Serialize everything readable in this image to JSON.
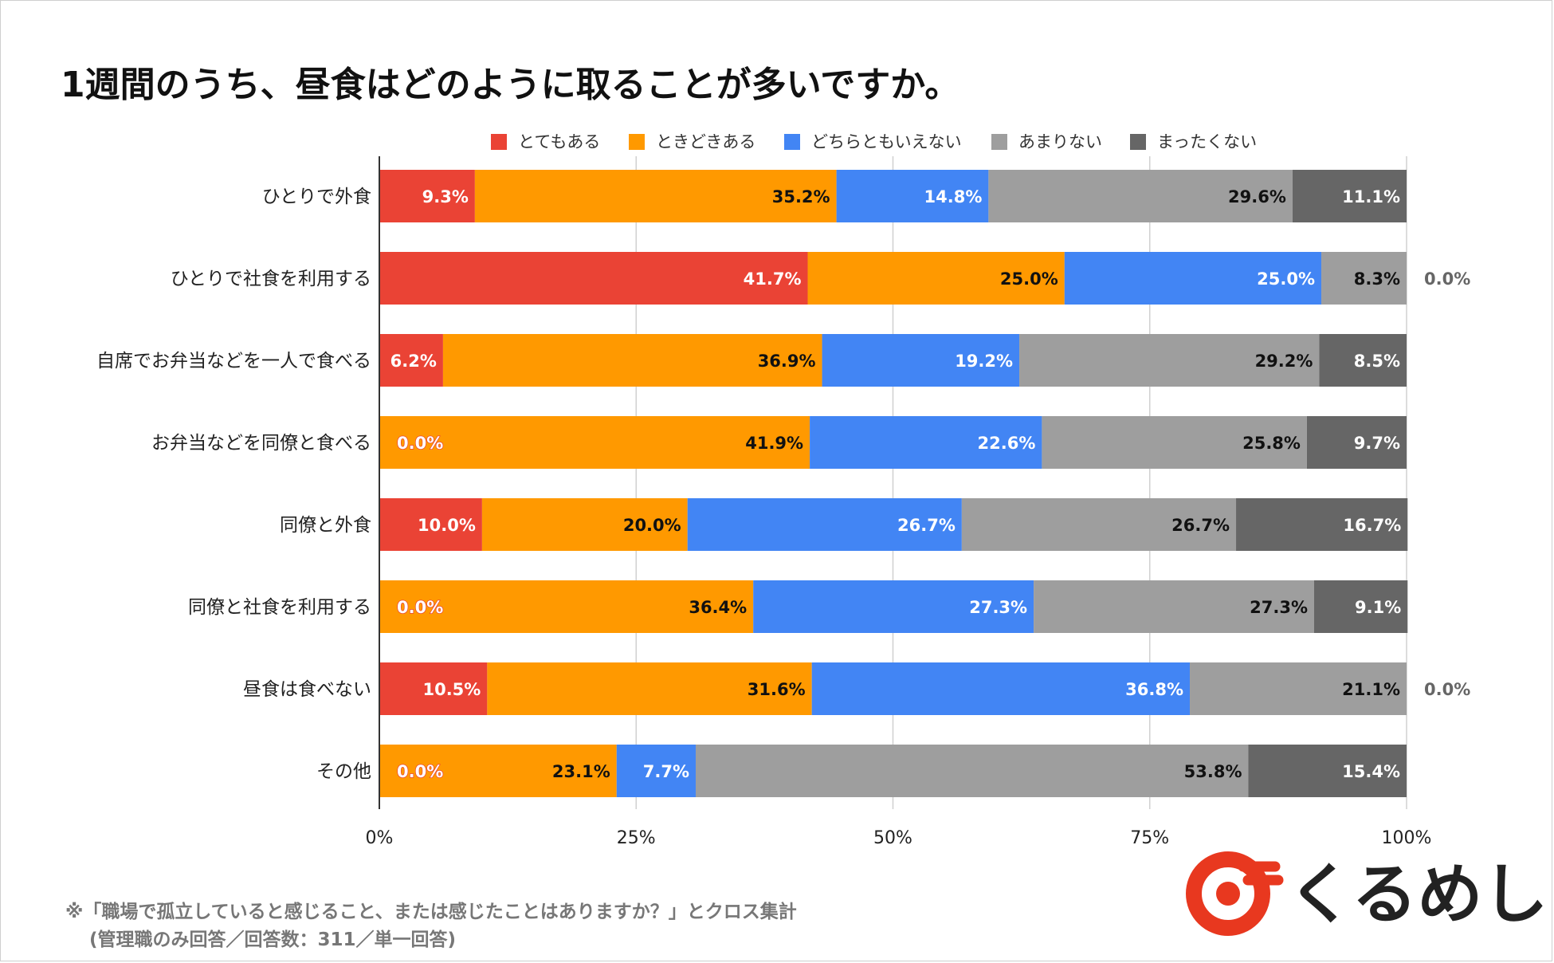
{
  "chart_data": {
    "type": "bar",
    "orientation": "horizontal",
    "stacked": true,
    "title": "1週間のうち、昼食はどのように取ることが多いですか。",
    "categories": [
      "ひとりで外食",
      "ひとりで社食を利用する",
      "自席でお弁当などを一人で食べる",
      "お弁当などを同僚と食べる",
      "同僚と外食",
      "同僚と社食を利用する",
      "昼食は食べない",
      "その他"
    ],
    "series": [
      {
        "name": "とてもある",
        "color": "#ea4335",
        "label_color": "#ffffff",
        "values": [
          9.3,
          41.7,
          6.2,
          0.0,
          10.0,
          0.0,
          10.5,
          0.0
        ]
      },
      {
        "name": "ときどきある",
        "color": "#ff9900",
        "label_color": "#111111",
        "values": [
          35.2,
          25.0,
          36.9,
          41.9,
          20.0,
          36.4,
          31.6,
          23.1
        ]
      },
      {
        "name": "どちらともいえない",
        "color": "#4285f4",
        "label_color": "#ffffff",
        "values": [
          14.8,
          25.0,
          19.2,
          22.6,
          26.7,
          27.3,
          36.8,
          7.7
        ]
      },
      {
        "name": "あまりない",
        "color": "#9e9e9e",
        "label_color": "#111111",
        "values": [
          29.6,
          8.3,
          29.2,
          25.8,
          26.7,
          27.3,
          21.1,
          53.8
        ]
      },
      {
        "name": "まったくない",
        "color": "#666666",
        "label_color": "#ffffff",
        "values": [
          11.1,
          0.0,
          8.5,
          9.7,
          16.7,
          9.1,
          0.0,
          15.4
        ]
      }
    ],
    "xlim": [
      0,
      100
    ],
    "xticks": [
      {
        "value": 0,
        "label": "0%"
      },
      {
        "value": 25,
        "label": "25%"
      },
      {
        "value": 50,
        "label": "50%"
      },
      {
        "value": 75,
        "label": "75%"
      },
      {
        "value": 100,
        "label": "100%"
      }
    ],
    "legend_position": "top",
    "grid": true
  },
  "footnote": {
    "line1": "※「職場で孤立していると感じること、または感じたことはありますか？」とクロス集計",
    "line2": "(管理職のみ回答／回答数：311／単一回答)"
  },
  "logo": {
    "text": "くるめし",
    "colors": {
      "red": "#e8381f"
    }
  }
}
